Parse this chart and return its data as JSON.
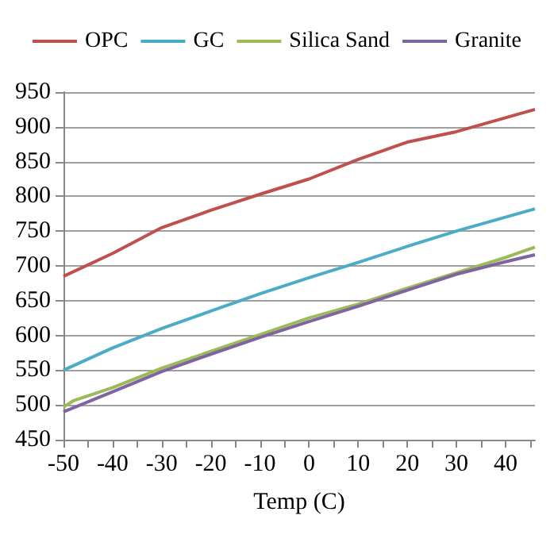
{
  "chart_data": {
    "type": "line",
    "xlabel": "Temp (C)",
    "x": [
      -50,
      -40,
      -30,
      -20,
      -10,
      0,
      10,
      20,
      30,
      40,
      46
    ],
    "series": [
      {
        "name": "OPC",
        "color": "#c0504d",
        "values": [
          685,
          718,
          755,
          780,
          803,
          825,
          853,
          878,
          893,
          913,
          925
        ]
      },
      {
        "name": "GC",
        "color": "#4bacc6",
        "values": [
          550,
          582,
          610,
          635,
          660,
          683,
          705,
          728,
          750,
          770,
          782
        ]
      },
      {
        "name": "Silica Sand",
        "color": "#9bbb59",
        "x": [
          -50,
          -48,
          -40,
          -30,
          -20,
          -10,
          0,
          10,
          20,
          30,
          40,
          46
        ],
        "values": [
          497,
          506,
          525,
          553,
          577,
          601,
          625,
          645,
          668,
          690,
          712,
          727
        ]
      },
      {
        "name": "Granite",
        "color": "#8064a2",
        "values": [
          490,
          519,
          548,
          573,
          597,
          620,
          642,
          665,
          688,
          706,
          716
        ]
      }
    ],
    "xlim": [
      -50,
      46
    ],
    "xticks": [
      -50,
      {
        "value": -45,
        "label": null
      },
      -40,
      {
        "value": -35,
        "label": null
      },
      -30,
      {
        "value": -25,
        "label": null
      },
      -20,
      {
        "value": -15,
        "label": null
      },
      -10,
      {
        "value": -5,
        "label": null
      },
      0,
      {
        "value": 5,
        "label": null
      },
      10,
      {
        "value": 15,
        "label": null
      },
      20,
      {
        "value": 25,
        "label": null
      },
      30,
      {
        "value": 35,
        "label": null
      },
      40,
      {
        "value": 45,
        "label": null
      }
    ],
    "ylim": [
      450,
      950
    ],
    "yticks": [
      450,
      500,
      550,
      600,
      650,
      700,
      750,
      800,
      850,
      900,
      950
    ],
    "grid": "y",
    "legend": "top",
    "marker": "none",
    "line_style": "solid"
  }
}
